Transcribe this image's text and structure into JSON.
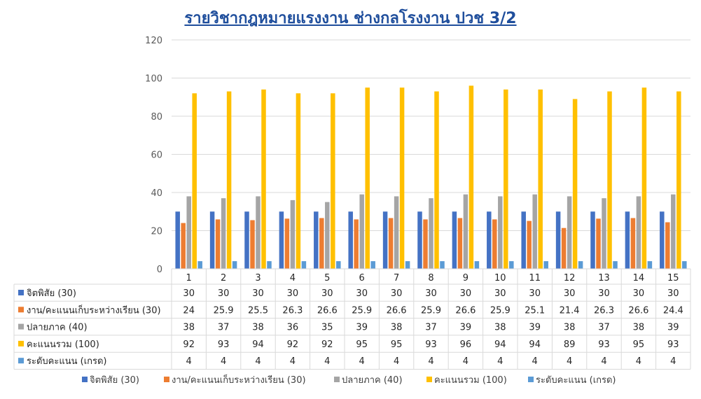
{
  "chart_data": {
    "type": "bar",
    "title": "รายวิชากฎหมายแรงงาน ช่างกลโรงงาน ปวช 3/2",
    "categories": [
      "1",
      "2",
      "3",
      "4",
      "5",
      "6",
      "7",
      "8",
      "9",
      "10",
      "11",
      "12",
      "13",
      "14",
      "15"
    ],
    "ylim": [
      0,
      120
    ],
    "yticks": [
      0,
      20,
      40,
      60,
      80,
      100,
      120
    ],
    "grid": true,
    "legend_position": "bottom",
    "data_table": true,
    "series": [
      {
        "name": "จิตพิสัย (30)",
        "color": "#4472c4",
        "values": [
          30,
          30,
          30,
          30,
          30,
          30,
          30,
          30,
          30,
          30,
          30,
          30,
          30,
          30,
          30
        ],
        "labels": [
          "30",
          "30",
          "30",
          "30",
          "30",
          "30",
          "30",
          "30",
          "30",
          "30",
          "30",
          "30",
          "30",
          "30",
          "30"
        ]
      },
      {
        "name": "งาน/คะแนนเก็บระหว่างเรียน (30)",
        "color": "#ed7d31",
        "values": [
          24,
          25.9,
          25.5,
          26.3,
          26.6,
          25.9,
          26.6,
          25.9,
          26.6,
          25.9,
          25.1,
          21.4,
          26.3,
          26.6,
          24.4
        ],
        "labels": [
          "24",
          "25.9",
          "25.5",
          "26.3",
          "26.6",
          "25.9",
          "26.6",
          "25.9",
          "26.6",
          "25.9",
          "25.1",
          "21.4",
          "26.3",
          "26.6",
          "24.4"
        ]
      },
      {
        "name": "ปลายภาค (40)",
        "color": "#a5a5a5",
        "values": [
          38,
          37,
          38,
          36,
          35,
          39,
          38,
          37,
          39,
          38,
          39,
          38,
          37,
          38,
          39
        ],
        "labels": [
          "38",
          "37",
          "38",
          "36",
          "35",
          "39",
          "38",
          "37",
          "39",
          "38",
          "39",
          "38",
          "37",
          "38",
          "39"
        ]
      },
      {
        "name": "คะแนนรวม (100)",
        "color": "#ffc000",
        "values": [
          92,
          93,
          94,
          92,
          92,
          95,
          95,
          93,
          96,
          94,
          94,
          89,
          93,
          95,
          93
        ],
        "labels": [
          "92",
          "93",
          "94",
          "92",
          "92",
          "95",
          "95",
          "93",
          "96",
          "94",
          "94",
          "89",
          "93",
          "95",
          "93"
        ]
      },
      {
        "name": "ระดับคะแนน (เกรด)",
        "color": "#5b9bd5",
        "values": [
          4,
          4,
          4,
          4,
          4,
          4,
          4,
          4,
          4,
          4,
          4,
          4,
          4,
          4,
          4
        ],
        "labels": [
          "4",
          "4",
          "4",
          "4",
          "4",
          "4",
          "4",
          "4",
          "4",
          "4",
          "4",
          "4",
          "4",
          "4",
          "4"
        ]
      }
    ]
  }
}
